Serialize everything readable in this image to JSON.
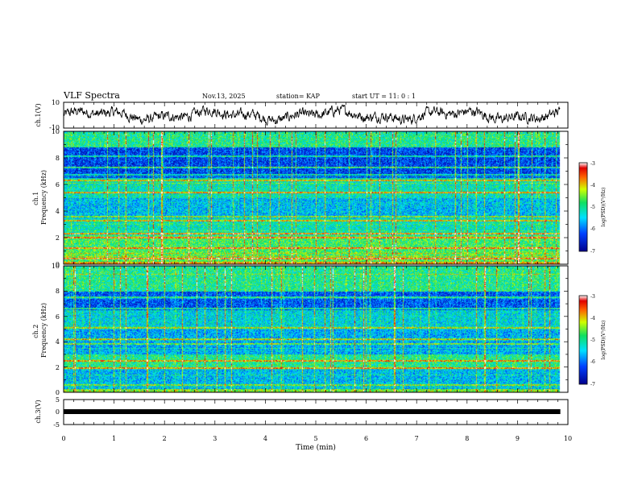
{
  "header": {
    "title": "VLF Spectra",
    "date": "Nov.13, 2025",
    "station": "station= KAP",
    "start": "start  UT =   11: 0  : 1"
  },
  "chart_data": [
    {
      "type": "line",
      "panel": "ch1-waveform",
      "ylabel": "ch.1(V)",
      "ylim": [
        -10,
        10
      ],
      "yticks": [
        "10",
        "-10"
      ],
      "xlim": [
        0,
        10
      ],
      "data_end_min": 9.85,
      "note": "dense noisy waveform, amplitude roughly +/-5 V about 0"
    },
    {
      "type": "heatmap",
      "panel": "ch1-spectrogram",
      "ylabel": "ch.1\nFrequency  (kHz)",
      "ylim": [
        0,
        10
      ],
      "yticks": [
        "0",
        "2",
        "4",
        "6",
        "8",
        "10"
      ],
      "xlim": [
        0,
        10
      ],
      "data_end_min": 9.85,
      "colorbar": {
        "label": "log(PSD)(V²/Hz)",
        "range": [
          -7,
          -3
        ],
        "ticks": [
          "-3",
          "-4",
          "-5",
          "-6",
          "-7"
        ]
      },
      "bands": [
        {
          "f": [
            0.0,
            0.2
          ],
          "level": -4.0
        },
        {
          "f": [
            0.2,
            1.0
          ],
          "level": -4.7
        },
        {
          "f": [
            1.0,
            2.2
          ],
          "level": -4.8
        },
        {
          "f": [
            2.2,
            3.5
          ],
          "level": -5.2
        },
        {
          "f": [
            3.5,
            5.0
          ],
          "level": -5.6
        },
        {
          "f": [
            5.0,
            6.5
          ],
          "level": -5.2
        },
        {
          "f": [
            6.5,
            8.8
          ],
          "level": -6.3
        },
        {
          "f": [
            8.8,
            10.0
          ],
          "level": -5.0
        }
      ],
      "lines_khz": [
        0.4,
        1.2,
        2.0,
        2.3,
        3.3,
        3.6,
        5.4,
        6.3,
        6.7,
        7.3,
        8.1
      ]
    },
    {
      "type": "heatmap",
      "panel": "ch2-spectrogram",
      "ylabel": "ch.2\nFrequency  (kHz)",
      "ylim": [
        0,
        10
      ],
      "yticks": [
        "0",
        "2",
        "4",
        "6",
        "8",
        "10"
      ],
      "xlim": [
        0,
        10
      ],
      "data_end_min": 9.85,
      "colorbar": {
        "label": "log(PSD)(V²/Hz)",
        "range": [
          -7,
          -3
        ],
        "ticks": [
          "-3",
          "-4",
          "-5",
          "-6",
          "-7"
        ]
      },
      "bands": [
        {
          "f": [
            0.0,
            0.3
          ],
          "level": -4.5
        },
        {
          "f": [
            0.3,
            1.9
          ],
          "level": -5.6
        },
        {
          "f": [
            1.9,
            3.0
          ],
          "level": -5.0
        },
        {
          "f": [
            3.0,
            5.0
          ],
          "level": -5.7
        },
        {
          "f": [
            5.0,
            6.5
          ],
          "level": -5.4
        },
        {
          "f": [
            6.5,
            8.0
          ],
          "level": -6.2
        },
        {
          "f": [
            8.0,
            10.0
          ],
          "level": -5.0
        }
      ],
      "lines_khz": [
        0.6,
        1.9,
        2.5,
        3.8,
        4.2,
        5.1,
        6.6,
        7.5
      ]
    },
    {
      "type": "line",
      "panel": "ch3-waveform",
      "ylabel": "ch.3(V)",
      "ylim": [
        -5,
        5
      ],
      "yticks": [
        "5",
        "0",
        "-5"
      ],
      "xlim": [
        0,
        10
      ],
      "xticks": [
        "0",
        "1",
        "2",
        "3",
        "4",
        "5",
        "6",
        "7",
        "8",
        "9",
        "10"
      ],
      "xlabel": "Time  (min)",
      "data_end_min": 9.85,
      "note": "thick constant trace near 0 V"
    }
  ]
}
